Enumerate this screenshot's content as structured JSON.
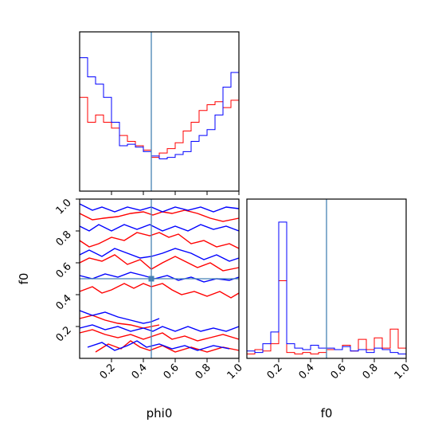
{
  "chart_data": {
    "type": "corner",
    "parameters": [
      "phi0",
      "f0"
    ],
    "truth": {
      "phi0": 0.45,
      "f0": 0.5
    },
    "truth_color": "#4682b4",
    "series_colors": {
      "red": "#ff0000",
      "blue": "#0000ff"
    },
    "ticks": {
      "values": [
        0.2,
        0.4,
        0.6,
        0.8,
        1.0
      ],
      "labels": [
        "0.2",
        "0.4",
        "0.6",
        "0.8",
        "1.0"
      ],
      "range": [
        0.0,
        1.0
      ]
    },
    "phi0_hist": {
      "bin_edges": [
        0.0,
        0.05,
        0.1,
        0.15,
        0.2,
        0.25,
        0.3,
        0.35,
        0.4,
        0.45,
        0.5,
        0.55,
        0.6,
        0.65,
        0.7,
        0.75,
        0.8,
        0.85,
        0.9,
        0.95,
        1.0
      ],
      "red": [
        0.64,
        0.47,
        0.52,
        0.47,
        0.43,
        0.38,
        0.34,
        0.31,
        0.28,
        0.23,
        0.26,
        0.29,
        0.33,
        0.41,
        0.47,
        0.55,
        0.59,
        0.61,
        0.57,
        0.62
      ],
      "blue": [
        0.91,
        0.78,
        0.73,
        0.64,
        0.47,
        0.31,
        0.32,
        0.3,
        0.27,
        0.24,
        0.22,
        0.23,
        0.25,
        0.27,
        0.34,
        0.38,
        0.42,
        0.52,
        0.71,
        0.81
      ],
      "ymax": 1.0
    },
    "f0_hist": {
      "bin_edges": [
        0.0,
        0.05,
        0.1,
        0.15,
        0.2,
        0.25,
        0.3,
        0.35,
        0.4,
        0.45,
        0.5,
        0.55,
        0.6,
        0.65,
        0.7,
        0.75,
        0.8,
        0.85,
        0.9,
        0.95,
        1.0
      ],
      "red": [
        0.03,
        0.06,
        0.05,
        0.1,
        0.53,
        0.04,
        0.03,
        0.04,
        0.03,
        0.04,
        0.06,
        0.06,
        0.09,
        0.05,
        0.13,
        0.06,
        0.14,
        0.07,
        0.2,
        0.07
      ],
      "blue": [
        0.05,
        0.04,
        0.1,
        0.18,
        0.93,
        0.1,
        0.07,
        0.06,
        0.09,
        0.07,
        0.07,
        0.06,
        0.08,
        0.05,
        0.06,
        0.04,
        0.07,
        0.06,
        0.04,
        0.03
      ],
      "ymax": 1.0
    },
    "contours_2d": {
      "x_param": "phi0",
      "y_param": "f0",
      "red": [
        [
          [
            0.0,
            0.91
          ],
          [
            0.08,
            0.87
          ],
          [
            0.15,
            0.88
          ],
          [
            0.24,
            0.89
          ],
          [
            0.32,
            0.91
          ],
          [
            0.4,
            0.92
          ],
          [
            0.46,
            0.9
          ],
          [
            0.52,
            0.92
          ],
          [
            0.58,
            0.91
          ],
          [
            0.66,
            0.93
          ],
          [
            0.74,
            0.91
          ],
          [
            0.82,
            0.88
          ],
          [
            0.9,
            0.86
          ],
          [
            1.0,
            0.88
          ]
        ],
        [
          [
            0.0,
            0.74
          ],
          [
            0.06,
            0.7
          ],
          [
            0.12,
            0.72
          ],
          [
            0.2,
            0.76
          ],
          [
            0.28,
            0.74
          ],
          [
            0.36,
            0.79
          ],
          [
            0.44,
            0.77
          ],
          [
            0.5,
            0.79
          ],
          [
            0.56,
            0.76
          ],
          [
            0.62,
            0.78
          ],
          [
            0.7,
            0.72
          ],
          [
            0.78,
            0.74
          ],
          [
            0.86,
            0.7
          ],
          [
            0.94,
            0.72
          ],
          [
            1.0,
            0.69
          ]
        ],
        [
          [
            0.0,
            0.6
          ],
          [
            0.06,
            0.63
          ],
          [
            0.14,
            0.61
          ],
          [
            0.22,
            0.65
          ],
          [
            0.3,
            0.59
          ],
          [
            0.38,
            0.62
          ],
          [
            0.45,
            0.56
          ],
          [
            0.52,
            0.6
          ],
          [
            0.6,
            0.64
          ],
          [
            0.66,
            0.61
          ],
          [
            0.74,
            0.57
          ],
          [
            0.82,
            0.6
          ],
          [
            0.9,
            0.55
          ],
          [
            1.0,
            0.57
          ]
        ],
        [
          [
            0.0,
            0.42
          ],
          [
            0.08,
            0.45
          ],
          [
            0.14,
            0.41
          ],
          [
            0.2,
            0.43
          ],
          [
            0.28,
            0.47
          ],
          [
            0.34,
            0.44
          ],
          [
            0.4,
            0.47
          ],
          [
            0.45,
            0.45
          ],
          [
            0.52,
            0.47
          ],
          [
            0.58,
            0.43
          ],
          [
            0.64,
            0.4
          ],
          [
            0.72,
            0.42
          ],
          [
            0.8,
            0.39
          ],
          [
            0.88,
            0.42
          ],
          [
            0.95,
            0.38
          ],
          [
            1.0,
            0.41
          ]
        ],
        [
          [
            0.0,
            0.25
          ],
          [
            0.08,
            0.27
          ],
          [
            0.16,
            0.24
          ],
          [
            0.24,
            0.22
          ],
          [
            0.32,
            0.21
          ],
          [
            0.4,
            0.19
          ],
          [
            0.45,
            0.2
          ],
          [
            0.5,
            0.21
          ]
        ],
        [
          [
            0.0,
            0.16
          ],
          [
            0.08,
            0.18
          ],
          [
            0.16,
            0.15
          ],
          [
            0.24,
            0.13
          ],
          [
            0.32,
            0.15
          ],
          [
            0.4,
            0.12
          ],
          [
            0.46,
            0.14
          ],
          [
            0.52,
            0.16
          ],
          [
            0.58,
            0.12
          ],
          [
            0.66,
            0.14
          ],
          [
            0.74,
            0.11
          ],
          [
            0.82,
            0.13
          ],
          [
            0.9,
            0.15
          ],
          [
            1.0,
            0.12
          ]
        ],
        [
          [
            0.1,
            0.04
          ],
          [
            0.18,
            0.09
          ],
          [
            0.26,
            0.06
          ],
          [
            0.32,
            0.11
          ],
          [
            0.38,
            0.07
          ],
          [
            0.44,
            0.05
          ],
          [
            0.52,
            0.08
          ],
          [
            0.6,
            0.04
          ],
          [
            0.7,
            0.07
          ],
          [
            0.8,
            0.04
          ],
          [
            0.9,
            0.07
          ],
          [
            1.0,
            0.05
          ]
        ]
      ],
      "blue": [
        [
          [
            0.0,
            0.97
          ],
          [
            0.08,
            0.93
          ],
          [
            0.14,
            0.95
          ],
          [
            0.22,
            0.92
          ],
          [
            0.3,
            0.95
          ],
          [
            0.38,
            0.93
          ],
          [
            0.45,
            0.95
          ],
          [
            0.52,
            0.92
          ],
          [
            0.6,
            0.95
          ],
          [
            0.68,
            0.93
          ],
          [
            0.76,
            0.95
          ],
          [
            0.84,
            0.92
          ],
          [
            0.92,
            0.95
          ],
          [
            1.0,
            0.94
          ]
        ],
        [
          [
            0.0,
            0.83
          ],
          [
            0.06,
            0.8
          ],
          [
            0.12,
            0.84
          ],
          [
            0.2,
            0.8
          ],
          [
            0.28,
            0.84
          ],
          [
            0.36,
            0.81
          ],
          [
            0.44,
            0.84
          ],
          [
            0.52,
            0.8
          ],
          [
            0.6,
            0.83
          ],
          [
            0.68,
            0.8
          ],
          [
            0.76,
            0.84
          ],
          [
            0.84,
            0.81
          ],
          [
            0.92,
            0.83
          ],
          [
            1.0,
            0.8
          ]
        ],
        [
          [
            0.0,
            0.65
          ],
          [
            0.06,
            0.68
          ],
          [
            0.14,
            0.64
          ],
          [
            0.22,
            0.69
          ],
          [
            0.3,
            0.66
          ],
          [
            0.38,
            0.63
          ],
          [
            0.45,
            0.64
          ],
          [
            0.52,
            0.66
          ],
          [
            0.6,
            0.69
          ],
          [
            0.7,
            0.66
          ],
          [
            0.78,
            0.62
          ],
          [
            0.86,
            0.65
          ],
          [
            0.94,
            0.61
          ],
          [
            1.0,
            0.63
          ]
        ],
        [
          [
            0.0,
            0.52
          ],
          [
            0.08,
            0.5
          ],
          [
            0.16,
            0.53
          ],
          [
            0.24,
            0.51
          ],
          [
            0.32,
            0.54
          ],
          [
            0.4,
            0.52
          ],
          [
            0.47,
            0.5
          ],
          [
            0.55,
            0.52
          ],
          [
            0.62,
            0.49
          ],
          [
            0.7,
            0.51
          ],
          [
            0.78,
            0.48
          ],
          [
            0.86,
            0.5
          ],
          [
            0.94,
            0.49
          ],
          [
            1.0,
            0.51
          ]
        ],
        [
          [
            0.0,
            0.3
          ],
          [
            0.08,
            0.27
          ],
          [
            0.16,
            0.29
          ],
          [
            0.24,
            0.26
          ],
          [
            0.32,
            0.24
          ],
          [
            0.4,
            0.22
          ],
          [
            0.45,
            0.23
          ],
          [
            0.5,
            0.25
          ]
        ],
        [
          [
            0.0,
            0.19
          ],
          [
            0.08,
            0.21
          ],
          [
            0.16,
            0.18
          ],
          [
            0.24,
            0.2
          ],
          [
            0.32,
            0.17
          ],
          [
            0.4,
            0.19
          ],
          [
            0.46,
            0.17
          ],
          [
            0.52,
            0.2
          ],
          [
            0.6,
            0.17
          ],
          [
            0.68,
            0.2
          ],
          [
            0.76,
            0.17
          ],
          [
            0.84,
            0.19
          ],
          [
            0.92,
            0.17
          ],
          [
            1.0,
            0.2
          ]
        ],
        [
          [
            0.05,
            0.07
          ],
          [
            0.14,
            0.1
          ],
          [
            0.22,
            0.05
          ],
          [
            0.3,
            0.08
          ],
          [
            0.36,
            0.11
          ],
          [
            0.42,
            0.07
          ],
          [
            0.5,
            0.09
          ],
          [
            0.58,
            0.06
          ],
          [
            0.66,
            0.08
          ],
          [
            0.74,
            0.05
          ],
          [
            0.84,
            0.08
          ],
          [
            0.94,
            0.06
          ]
        ]
      ]
    }
  }
}
